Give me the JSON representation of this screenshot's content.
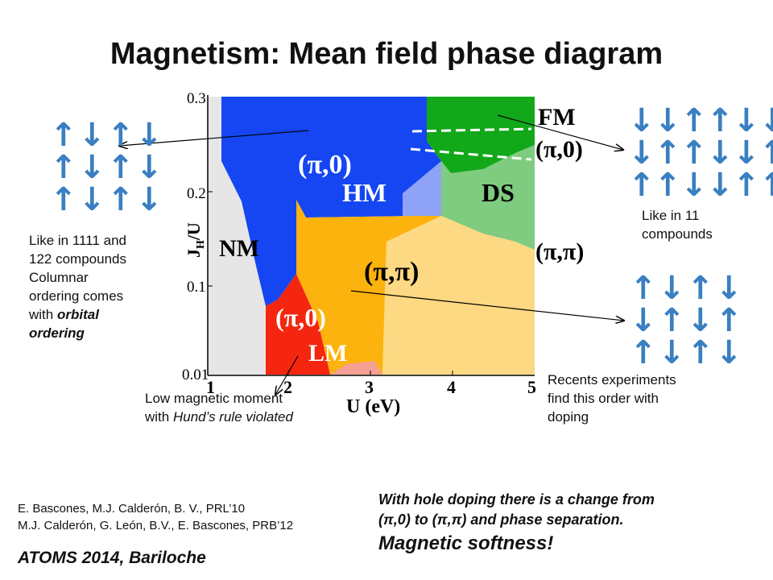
{
  "title": "Magnetism: Mean field phase diagram",
  "diagram": {
    "y_axis": {
      "label": "J",
      "label_sub": "H",
      "label_suffix": "/U",
      "ticks": [
        "0.3",
        "0.2",
        "0.1",
        "0.01"
      ]
    },
    "x_axis": {
      "label": "U (eV)",
      "ticks": [
        "1",
        "2",
        "3",
        "4",
        "5"
      ]
    },
    "regions": {
      "nm": "NM",
      "hm_order": "(π,0)",
      "hm": "HM",
      "fm": "FM",
      "fm_order": "(π,0)",
      "ds": "DS",
      "ds_order": "(π,π)",
      "center_order": "(π,π)",
      "lm_order": "(π,0)",
      "lm": "LM"
    },
    "colors": {
      "nm": "#e6e6e6",
      "hm": "#1546f2",
      "fm": "#11a81a",
      "ds": "#7fcb7f",
      "light_blue": "#8ea3f5",
      "orange": "#fdb30d",
      "light_orange": "#fcd982",
      "red": "#f5260f",
      "pink": "#f4a093"
    }
  },
  "spins": {
    "left": {
      "rows": [
        "↑↓↑↓",
        "↑↓↑↓",
        "↑↓↑↓"
      ],
      "color": "#3a7fc1"
    },
    "right_top": {
      "rows": [
        "↓↓↑↑↓↓",
        "↓↑↑↓↓↑",
        "↑↑↓↓↑↑"
      ],
      "color": "#3a7fc1"
    },
    "right_bottom": {
      "rows": [
        "↑↓↑↓",
        "↓↑↓↑",
        "↑↓↑↓"
      ],
      "color": "#3a7fc1"
    }
  },
  "annotations": {
    "left_line1": "Like in 1111 and",
    "left_line2": "122 compounds",
    "left_line3": "Columnar",
    "left_line4": "ordering comes",
    "left_line5_pre": "with ",
    "left_line5_em": "orbital",
    "left_line6_em": "ordering",
    "right_top_line1": "Like in 11",
    "right_top_line2": "compounds",
    "right_bottom_line1": "Recents experiments",
    "right_bottom_line2": "find this order with",
    "right_bottom_line3": "doping",
    "low_moment_line1": "Low magnetic moment",
    "low_moment_line2_pre": "with ",
    "low_moment_line2_em": "Hund’s rule violated"
  },
  "references": {
    "ref1": "E. Bascones, M.J. Calderón, B. V., PRL’10",
    "ref2": "M.J. Calderón, G. León, B.V., E. Bascones, PRB’12"
  },
  "footer": "ATOMS 2014, Bariloche",
  "hole_doping": {
    "line1": "With hole doping there is a change from",
    "line2": "(π,0) to (π,π) and phase separation.",
    "softness": "Magnetic softness!"
  }
}
